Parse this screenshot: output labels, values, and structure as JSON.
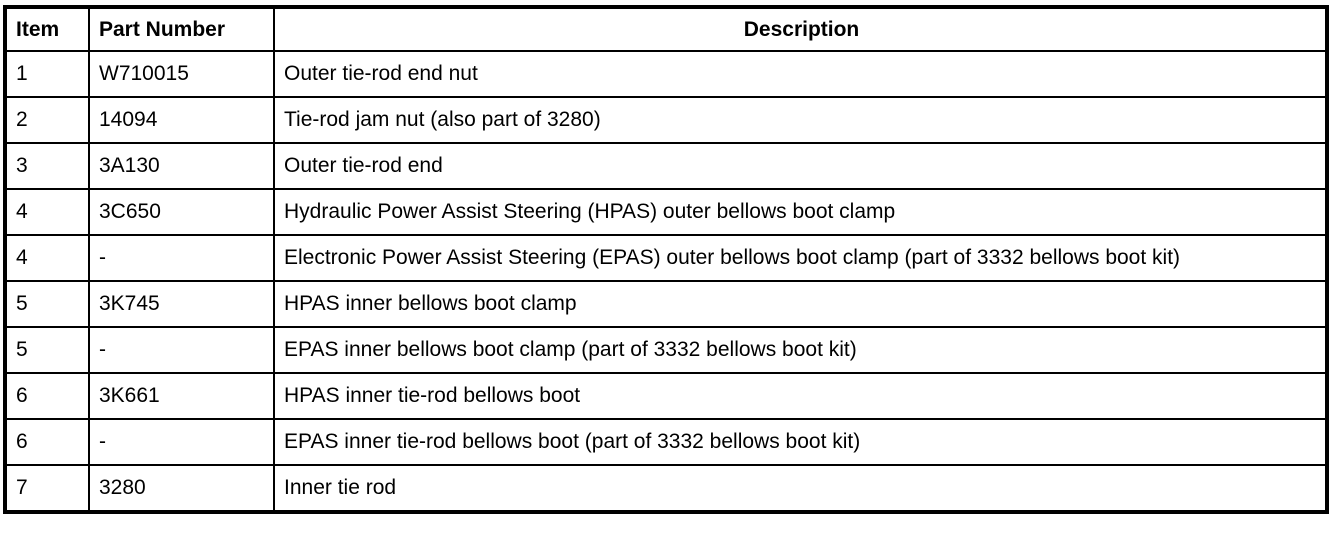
{
  "table": {
    "columns": {
      "item": "Item",
      "part_number": "Part Number",
      "description": "Description"
    },
    "rows": [
      {
        "item": "1",
        "part_number": "W710015",
        "description": "Outer tie-rod end nut"
      },
      {
        "item": "2",
        "part_number": "14094",
        "description": "Tie-rod jam nut (also part of 3280)"
      },
      {
        "item": "3",
        "part_number": "3A130",
        "description": "Outer tie-rod end"
      },
      {
        "item": "4",
        "part_number": "3C650",
        "description": "Hydraulic Power Assist Steering (HPAS) outer bellows boot clamp"
      },
      {
        "item": "4",
        "part_number": "-",
        "description": "Electronic Power Assist Steering (EPAS) outer bellows boot clamp (part of 3332 bellows boot kit)"
      },
      {
        "item": "5",
        "part_number": "3K745",
        "description": "HPAS inner bellows boot clamp"
      },
      {
        "item": "5",
        "part_number": "-",
        "description": "EPAS inner bellows boot clamp (part of 3332 bellows boot kit)"
      },
      {
        "item": "6",
        "part_number": "3K661",
        "description": "HPAS inner tie-rod bellows boot"
      },
      {
        "item": "6",
        "part_number": "-",
        "description": "EPAS inner tie-rod bellows boot (part of 3332 bellows boot kit)"
      },
      {
        "item": "7",
        "part_number": "3280",
        "description": "Inner tie rod"
      }
    ]
  },
  "colors": {
    "border": "#000000",
    "text": "#000000",
    "background": "#ffffff"
  }
}
